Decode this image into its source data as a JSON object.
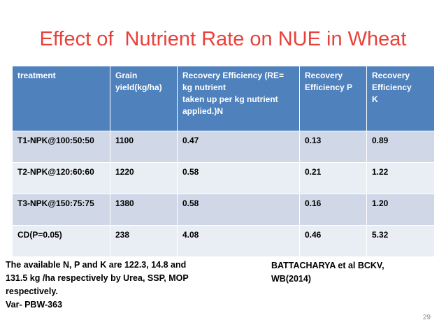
{
  "title": "Effect of  Nutrient Rate on NUE in Wheat",
  "table": {
    "headers": [
      [
        "treatment"
      ],
      [
        "Grain",
        "yield(kg/ha)"
      ],
      [
        "Recovery Efficiency (RE=",
        "kg nutrient",
        "taken up per kg nutrient",
        "applied.)N"
      ],
      [
        "Recovery",
        "Efficiency  P"
      ],
      [
        "Recovery",
        "Efficiency",
        "K"
      ]
    ],
    "rows": [
      [
        "T1-NPK@100:50:50",
        "1100",
        "0.47",
        "0.13",
        "0.89"
      ],
      [
        "T2-NPK@120:60:60",
        "1220",
        "0.58",
        "0.21",
        "1.22"
      ],
      [
        "T3-NPK@150:75:75",
        "1380",
        "0.58",
        "0.16",
        "1.20"
      ],
      [
        "CD(P=0.05)",
        "238",
        "4.08",
        "0.46",
        "5.32"
      ]
    ]
  },
  "note_left": [
    "The available N, P and K  are 122.3, 14.8 and",
    "131.5 kg /ha respectively by Urea, SSP, MOP",
    "respectively.",
    "Var- PBW-363"
  ],
  "note_right": [
    "BATTACHARYA et al BCKV,",
    "WB(2014)"
  ],
  "page_number": "29"
}
